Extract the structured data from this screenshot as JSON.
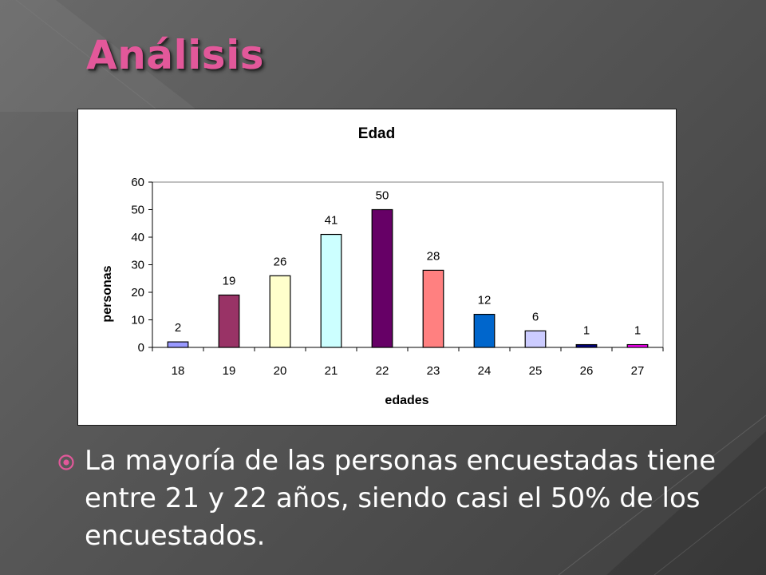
{
  "slide": {
    "title": "Análisis",
    "bullet_text": "La mayoría de las personas encuestadas tiene entre 21 y 22 años, siendo casi el 50% de los encuestados."
  },
  "colors": {
    "title": "#e2589a",
    "background": "#555555"
  },
  "chart_data": {
    "type": "bar",
    "title": "Edad",
    "xlabel": "edades",
    "ylabel": "personas",
    "categories": [
      "18",
      "19",
      "20",
      "21",
      "22",
      "23",
      "24",
      "25",
      "26",
      "27"
    ],
    "values": [
      2,
      19,
      26,
      41,
      50,
      28,
      12,
      6,
      1,
      1
    ],
    "bar_colors": [
      "#9999ff",
      "#993366",
      "#ffffcc",
      "#ccffff",
      "#660066",
      "#ff8080",
      "#0066cc",
      "#ccccff",
      "#000080",
      "#ff00ff"
    ],
    "ylim": [
      0,
      60
    ],
    "yticks": [
      0,
      10,
      20,
      30,
      40,
      50,
      60
    ],
    "grid": false,
    "legend": "none"
  }
}
